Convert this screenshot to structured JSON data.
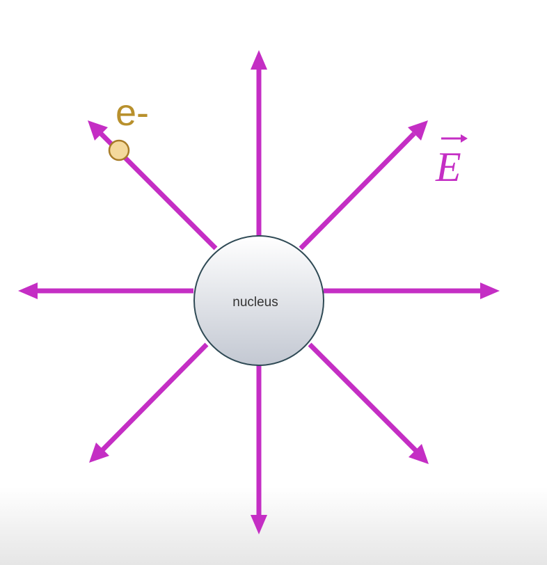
{
  "diagram": {
    "nucleus": {
      "label": "nucleus"
    },
    "electron": {
      "label": "e-"
    },
    "field": {
      "label": "E",
      "vector_arrow": true,
      "line_count": 8,
      "directions": [
        "up",
        "up-right",
        "right",
        "down-right",
        "down",
        "down-left",
        "left",
        "up-left"
      ]
    },
    "colors": {
      "field_lines": "#c42ec4",
      "field_label": "#c42ec4",
      "electron_label": "#b8902c",
      "electron_fill": "#f4d99c",
      "electron_stroke": "#a87c28",
      "nucleus_fill_top": "#ffffff",
      "nucleus_fill_bottom": "#c3c8d2",
      "nucleus_stroke": "#2f4a55",
      "nucleus_text": "#333333"
    }
  }
}
